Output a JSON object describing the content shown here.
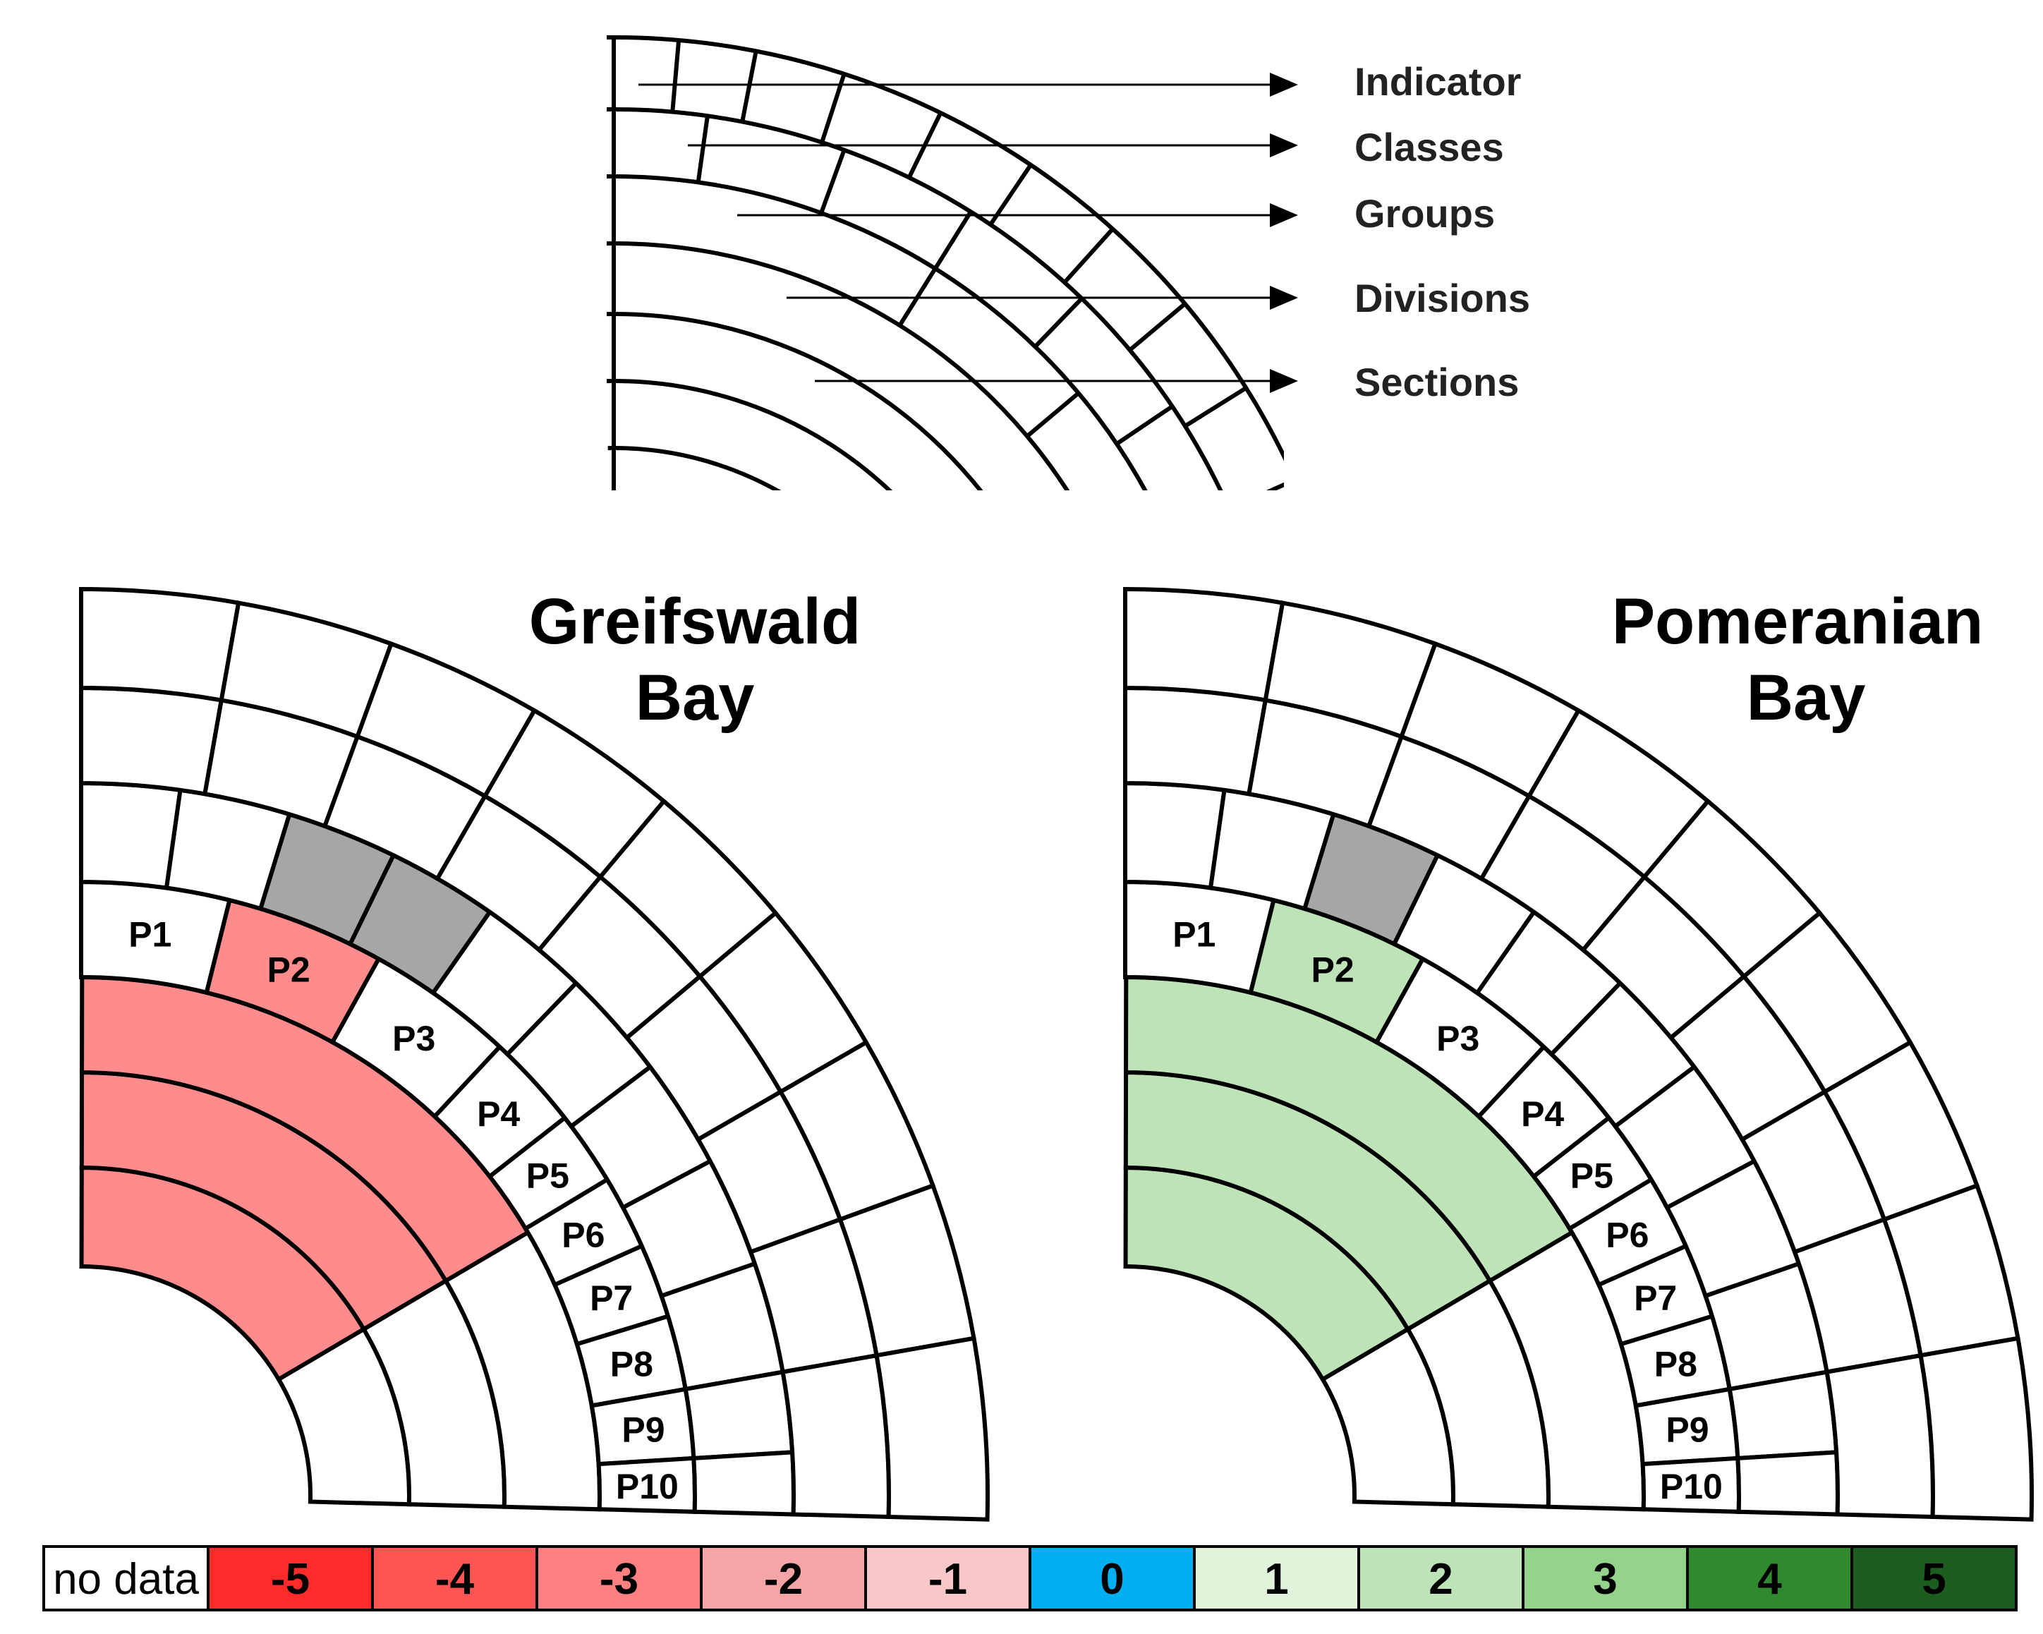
{
  "key": {
    "labels": [
      "Indicator",
      "Classes",
      "Groups",
      "Divisions",
      "Sections"
    ]
  },
  "bays": [
    {
      "title_lines": [
        "Greifswald",
        "Bay"
      ],
      "fill_color": "#ff8c8c",
      "section_labels": [
        "P1",
        "P2",
        "P3",
        "P4",
        "P5",
        "P6",
        "P7",
        "P8",
        "P9",
        "P10"
      ],
      "filled_section": "P2",
      "highlighted_indicators": [
        2,
        3
      ],
      "filled_rings": [
        "groups",
        "divisions",
        "sections-inner"
      ]
    },
    {
      "title_lines": [
        "Pomeranian",
        "Bay"
      ],
      "fill_color": "#bde3b7",
      "section_labels": [
        "P1",
        "P2",
        "P3",
        "P4",
        "P5",
        "P6",
        "P7",
        "P8",
        "P9",
        "P10"
      ],
      "filled_section": "P2",
      "highlighted_indicators": [
        2
      ],
      "filled_rings": [
        "groups",
        "divisions",
        "sections-inner"
      ]
    }
  ],
  "highlight_color": "#a6a6a6",
  "legend": [
    {
      "label": "no data",
      "color": "#ffffff",
      "bold": false
    },
    {
      "label": "-5",
      "color": "#ff2a2a",
      "bold": true
    },
    {
      "label": "-4",
      "color": "#ff5555",
      "bold": true
    },
    {
      "label": "-3",
      "color": "#ff8080",
      "bold": true
    },
    {
      "label": "-2",
      "color": "#f5a5a5",
      "bold": true
    },
    {
      "label": "-1",
      "color": "#f8c8c8",
      "bold": true
    },
    {
      "label": "0",
      "color": "#00b0f0",
      "bold": true
    },
    {
      "label": "1",
      "color": "#e2f3dc",
      "bold": true
    },
    {
      "label": "2",
      "color": "#bde3b7",
      "bold": true
    },
    {
      "label": "3",
      "color": "#96d38a",
      "bold": true
    },
    {
      "label": "4",
      "color": "#2f8a2f",
      "bold": true
    },
    {
      "label": "5",
      "color": "#1b5e20",
      "bold": true
    }
  ]
}
